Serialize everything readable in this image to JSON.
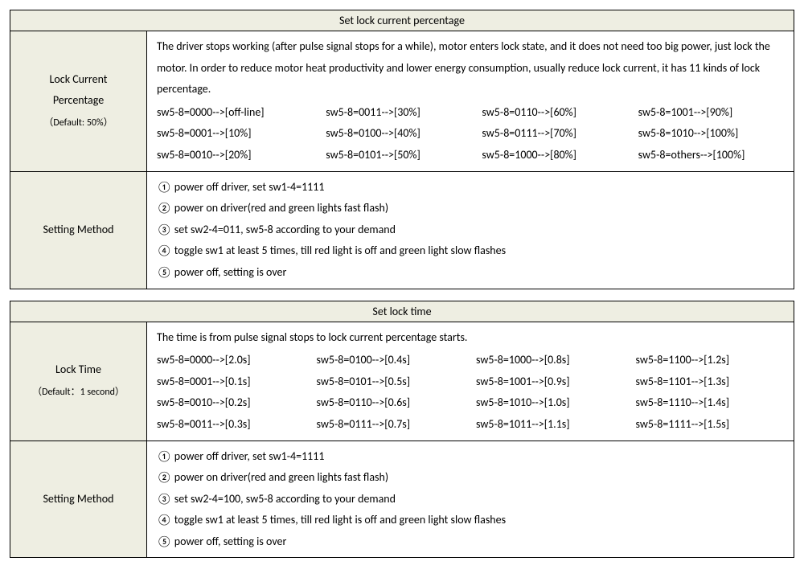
{
  "colors": {
    "header_bg": "#eeeee2",
    "border": "#000000",
    "text": "#000000",
    "page_bg": "#ffffff"
  },
  "table1": {
    "title": "Set lock current percentage",
    "row1": {
      "label_line1": "Lock Current",
      "label_line2": "Percentage",
      "label_sub": "（Default: 50%）",
      "desc": "The driver stops working (after pulse signal stops for a while), motor enters lock state, and it does not need too big power, just lock the motor. In order to reduce motor heat productivity and lower energy consumption, usually reduce lock current, it has 11 kinds of lock percentage.",
      "sw": [
        "sw5-8=0000-->[off-line]",
        "sw5-8=0011-->[30%]",
        "sw5-8=0110-->[60%]",
        "sw5-8=1001-->[90%]",
        "sw5-8=0001-->[10%]",
        "sw5-8=0100-->[40%]",
        "sw5-8=0111-->[70%]",
        "sw5-8=1010-->[100%]",
        "sw5-8=0010-->[20%]",
        "sw5-8=0101-->[50%]",
        "sw5-8=1000-->[80%]",
        "sw5-8=others-->[100%]"
      ]
    },
    "row2": {
      "label": "Setting Method",
      "steps": [
        "① power off driver, set sw1-4=1111",
        "② power on driver(red and green lights fast flash)",
        "③ set sw2-4=011, sw5-8 according to your demand",
        "④ toggle sw1 at least 5 times, till red light is off and green light slow flashes",
        "⑤ power off, setting is over"
      ]
    }
  },
  "table2": {
    "title": "Set lock time",
    "row1": {
      "label_line1": "Lock Time",
      "label_sub": "（Default：1 second）",
      "desc": "The time is from pulse signal stops to lock current percentage starts.",
      "sw": [
        "sw5-8=0000-->[2.0s]",
        "sw5-8=0100-->[0.4s]",
        "sw5-8=1000-->[0.8s]",
        "sw5-8=1100-->[1.2s]",
        "sw5-8=0001-->[0.1s]",
        "sw5-8=0101-->[0.5s]",
        "sw5-8=1001-->[0.9s]",
        "sw5-8=1101-->[1.3s]",
        "sw5-8=0010-->[0.2s]",
        "sw5-8=0110-->[0.6s]",
        "sw5-8=1010-->[1.0s]",
        "sw5-8=1110-->[1.4s]",
        "sw5-8=0011-->[0.3s]",
        "sw5-8=0111-->[0.7s]",
        "sw5-8=1011-->[1.1s]",
        "sw5-8=1111-->[1.5s]"
      ]
    },
    "row2": {
      "label": "Setting Method",
      "steps": [
        "① power off driver, set sw1-4=1111",
        "② power on driver(red and green lights fast flash)",
        "③ set sw2-4=100, sw5-8 according to your demand",
        "④ toggle sw1 at least 5 times, till red light is off and green light slow flashes",
        "⑤ power off, setting is over"
      ]
    }
  }
}
